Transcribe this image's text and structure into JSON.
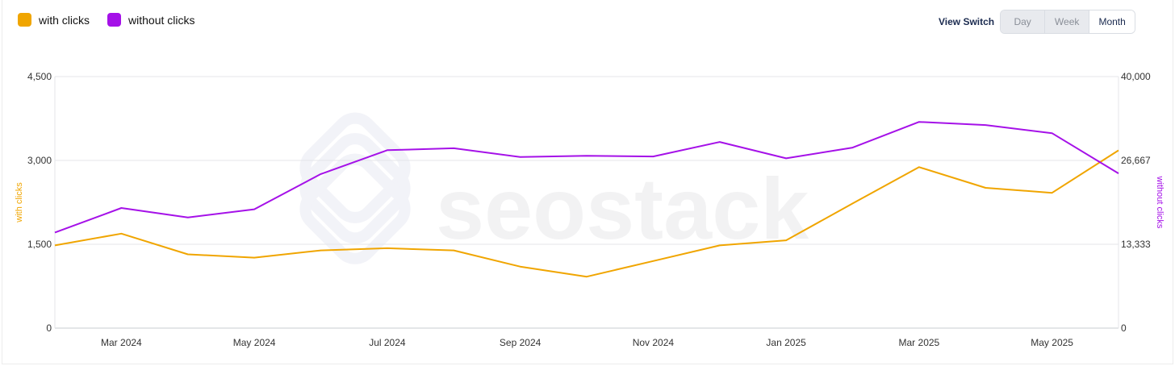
{
  "legend": {
    "series_a": {
      "label": "with clicks",
      "color": "#f0a500"
    },
    "series_b": {
      "label": "without clicks",
      "color": "#a511e8"
    }
  },
  "view_switch": {
    "label": "View Switch",
    "options": [
      "Day",
      "Week",
      "Month"
    ],
    "selected": "Month"
  },
  "watermark": "seostack",
  "chart_data": {
    "type": "line",
    "x": [
      "Feb 2024",
      "Mar 2024",
      "Apr 2024",
      "May 2024",
      "Jun 2024",
      "Jul 2024",
      "Aug 2024",
      "Sep 2024",
      "Oct 2024",
      "Nov 2024",
      "Dec 2024",
      "Jan 2025",
      "Feb 2025",
      "Mar 2025",
      "Apr 2025",
      "May 2025",
      "Jun 2025"
    ],
    "x_tick_labels": [
      "Mar 2024",
      "May 2024",
      "Jul 2024",
      "Sep 2024",
      "Nov 2024",
      "Jan 2025",
      "Mar 2025",
      "May 2025"
    ],
    "series": [
      {
        "name": "with clicks",
        "axis": "left",
        "color": "#f0a500",
        "values": [
          1480,
          1690,
          1320,
          1260,
          1390,
          1430,
          1390,
          1100,
          920,
          1200,
          1480,
          1570,
          2230,
          2880,
          2510,
          2420,
          3180
        ]
      },
      {
        "name": "without clicks",
        "axis": "right",
        "color": "#a511e8",
        "values": [
          15200,
          19100,
          17600,
          18900,
          24500,
          28300,
          28600,
          27200,
          27400,
          27300,
          29600,
          27000,
          28700,
          32800,
          32300,
          31000,
          24600
        ]
      }
    ],
    "y_left": {
      "label": "with clicks",
      "ylim": [
        0,
        4500
      ],
      "ticks": [
        "0",
        "1,500",
        "3,000",
        "4,500"
      ]
    },
    "y_right": {
      "label": "without clicks",
      "ylim": [
        0,
        40000
      ],
      "ticks": [
        "0",
        "13,333",
        "26,667",
        "40,000"
      ]
    },
    "grid": true,
    "legend_position": "top-left"
  }
}
